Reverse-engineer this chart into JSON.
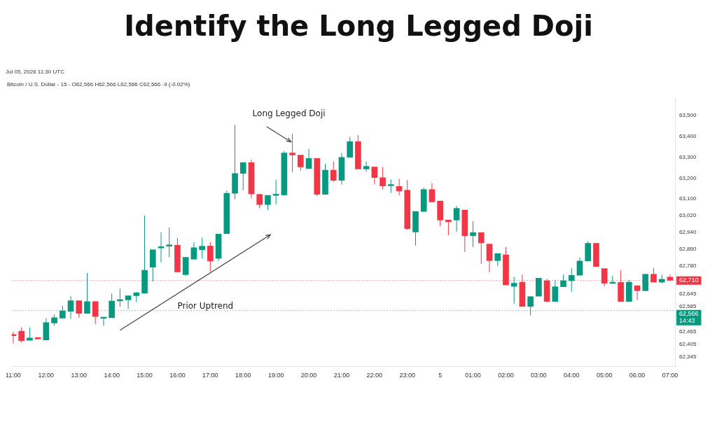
{
  "chart_data": {
    "type": "candlestick",
    "title": "Identify the Long Legged Doji",
    "subtitle": "Bitcoin / U.S. Dollar - 15 - O62,566 H62,566 L62,566 C62,566 -9 (-0.02%)",
    "x": [
      "2026-07-04T11:00",
      "2026-07-04T11:15",
      "2026-07-04T11:30",
      "2026-07-04T11:45",
      "2026-07-04T12:00",
      "2026-07-04T12:15",
      "2026-07-04T12:30",
      "2026-07-04T12:45",
      "2026-07-04T13:00",
      "2026-07-04T13:15",
      "2026-07-04T13:30",
      "2026-07-04T13:45",
      "2026-07-04T14:00",
      "2026-07-04T14:15",
      "2026-07-04T14:30",
      "2026-07-04T14:45",
      "2026-07-04T15:00",
      "2026-07-04T15:15",
      "2026-07-04T15:30",
      "2026-07-04T15:45",
      "2026-07-04T16:00",
      "2026-07-04T16:15",
      "2026-07-04T16:30",
      "2026-07-04T16:45",
      "2026-07-04T17:00",
      "2026-07-04T17:15",
      "2026-07-04T17:30",
      "2026-07-04T17:45",
      "2026-07-04T18:00",
      "2026-07-04T18:15",
      "2026-07-04T18:30",
      "2026-07-04T18:45",
      "2026-07-04T19:00",
      "2026-07-04T19:15",
      "2026-07-04T19:30",
      "2026-07-04T19:45",
      "2026-07-04T20:00",
      "2026-07-04T20:15",
      "2026-07-04T20:30",
      "2026-07-04T20:45",
      "2026-07-04T21:00",
      "2026-07-04T21:15",
      "2026-07-04T21:30",
      "2026-07-04T21:45",
      "2026-07-04T22:00",
      "2026-07-04T22:15",
      "2026-07-04T22:30",
      "2026-07-04T22:45",
      "2026-07-04T23:00",
      "2026-07-04T23:15",
      "2026-07-04T23:30",
      "2026-07-04T23:45",
      "2026-07-05T00:00",
      "2026-07-05T00:15",
      "2026-07-05T00:30",
      "2026-07-05T00:45",
      "2026-07-05T01:00",
      "2026-07-05T01:15",
      "2026-07-05T01:30",
      "2026-07-05T01:45",
      "2026-07-05T02:00",
      "2026-07-05T02:15",
      "2026-07-05T02:30",
      "2026-07-05T02:45",
      "2026-07-05T03:00",
      "2026-07-05T03:15",
      "2026-07-05T03:30",
      "2026-07-05T03:45",
      "2026-07-05T04:00",
      "2026-07-05T04:15",
      "2026-07-05T04:30",
      "2026-07-05T04:45",
      "2026-07-05T05:00",
      "2026-07-05T05:15",
      "2026-07-05T05:30",
      "2026-07-05T05:45",
      "2026-07-05T06:00",
      "2026-07-05T06:15",
      "2026-07-05T06:30",
      "2026-07-05T06:45",
      "2026-07-05T07:00"
    ],
    "ohlc": [
      [
        62452,
        62465,
        62409,
        62446
      ],
      [
        62468,
        62486,
        62414,
        62422
      ],
      [
        62424,
        62486,
        62424,
        62435
      ],
      [
        62437,
        62440,
        62430,
        62431
      ],
      [
        62426,
        62530,
        62426,
        62509
      ],
      [
        62507,
        62548,
        62493,
        62532
      ],
      [
        62530,
        62589,
        62530,
        62565
      ],
      [
        62563,
        62635,
        62527,
        62613
      ],
      [
        62613,
        62613,
        62532,
        62553
      ],
      [
        62553,
        62746,
        62553,
        62609
      ],
      [
        62609,
        62609,
        62502,
        62538
      ],
      [
        62529,
        62535,
        62493,
        62535
      ],
      [
        62532,
        62648,
        62532,
        62612
      ],
      [
        62612,
        62671,
        62584,
        62618
      ],
      [
        62617,
        62637,
        62574,
        62637
      ],
      [
        62637,
        62656,
        62607,
        62651
      ],
      [
        62649,
        63021,
        62649,
        62759
      ],
      [
        62774,
        62857,
        62705,
        62857
      ],
      [
        62866,
        62941,
        62797,
        62872
      ],
      [
        62874,
        62963,
        62821,
        62880
      ],
      [
        62879,
        62913,
        62751,
        62751
      ],
      [
        62738,
        62821,
        62733,
        62821
      ],
      [
        62812,
        62893,
        62812,
        62867
      ],
      [
        62857,
        62915,
        62816,
        62874
      ],
      [
        62875,
        62893,
        62754,
        62803
      ],
      [
        62816,
        62932,
        62803,
        62932
      ],
      [
        62934,
        63140,
        62934,
        63127
      ],
      [
        63127,
        63454,
        63099,
        63222
      ],
      [
        63222,
        63274,
        63140,
        63274
      ],
      [
        63274,
        63289,
        63104,
        63124
      ],
      [
        63122,
        63122,
        63057,
        63073
      ],
      [
        63073,
        63117,
        63047,
        63117
      ],
      [
        63117,
        63191,
        63073,
        63123
      ],
      [
        63119,
        63330,
        63119,
        63320
      ],
      [
        63320,
        63413,
        63227,
        63310
      ],
      [
        63310,
        63310,
        63234,
        63253
      ],
      [
        63246,
        63340,
        63246,
        63294
      ],
      [
        63294,
        63294,
        63114,
        63122
      ],
      [
        63122,
        63268,
        63122,
        63238
      ],
      [
        63238,
        63279,
        63181,
        63189
      ],
      [
        63189,
        63320,
        63169,
        63299
      ],
      [
        63299,
        63397,
        63299,
        63374
      ],
      [
        63374,
        63405,
        63243,
        63243
      ],
      [
        63243,
        63279,
        63230,
        63256
      ],
      [
        63253,
        63253,
        63169,
        63202
      ],
      [
        63202,
        63253,
        63145,
        63162
      ],
      [
        63163,
        63193,
        63129,
        63169
      ],
      [
        63160,
        63196,
        63117,
        63138
      ],
      [
        63142,
        63191,
        62952,
        62958
      ],
      [
        62942,
        63040,
        62877,
        63040
      ],
      [
        63040,
        63155,
        63040,
        63145
      ],
      [
        63145,
        63176,
        63086,
        63086
      ],
      [
        63090,
        63090,
        62970,
        62999
      ],
      [
        62999,
        62999,
        62926,
        62991
      ],
      [
        62999,
        63066,
        62944,
        63055
      ],
      [
        63047,
        63047,
        62846,
        62924
      ],
      [
        62924,
        62994,
        62870,
        62939
      ],
      [
        62939,
        62939,
        62790,
        62890
      ],
      [
        62884,
        62884,
        62749,
        62805
      ],
      [
        62805,
        62839,
        62779,
        62839
      ],
      [
        62833,
        62870,
        62689,
        62689
      ],
      [
        62682,
        62728,
        62599,
        62697
      ],
      [
        62702,
        62738,
        62586,
        62586
      ],
      [
        62586,
        62633,
        62543,
        62633
      ],
      [
        62635,
        62721,
        62635,
        62721
      ],
      [
        62709,
        62718,
        62605,
        62610
      ],
      [
        62610,
        62713,
        62610,
        62680
      ],
      [
        62680,
        62738,
        62680,
        62709
      ],
      [
        62709,
        62769,
        62656,
        62735
      ],
      [
        62735,
        62821,
        62735,
        62803
      ],
      [
        62803,
        62898,
        62803,
        62888
      ],
      [
        62888,
        62888,
        62777,
        62777
      ],
      [
        62767,
        62767,
        62682,
        62697
      ],
      [
        62696,
        62733,
        62696,
        62702
      ],
      [
        62701,
        62759,
        62610,
        62610
      ],
      [
        62610,
        62713,
        62610,
        62702
      ],
      [
        62685,
        62685,
        62617,
        62661
      ],
      [
        62661,
        62740,
        62661,
        62740
      ],
      [
        62740,
        62769,
        62702,
        62702
      ],
      [
        62702,
        62738,
        62697,
        62716
      ],
      [
        62726,
        62738,
        62711,
        62711
      ]
    ],
    "colors": [
      "#f23645",
      "#f23645",
      "#089981",
      "#f23645",
      "#089981",
      "#089981",
      "#089981",
      "#089981",
      "#f23645",
      "#089981",
      "#f23645",
      "#089981",
      "#089981",
      "#089981",
      "#089981",
      "#089981",
      "#089981",
      "#089981",
      "#089981",
      "#089981",
      "#f23645",
      "#089981",
      "#089981",
      "#089981",
      "#f23645",
      "#089981",
      "#089981",
      "#089981",
      "#089981",
      "#f23645",
      "#f23645",
      "#089981",
      "#089981",
      "#089981",
      "#f23645",
      "#f23645",
      "#089981",
      "#f23645",
      "#089981",
      "#f23645",
      "#089981",
      "#089981",
      "#f23645",
      "#089981",
      "#f23645",
      "#f23645",
      "#089981",
      "#f23645",
      "#f23645",
      "#089981",
      "#089981",
      "#f23645",
      "#f23645",
      "#f23645",
      "#089981",
      "#f23645",
      "#089981",
      "#f23645",
      "#f23645",
      "#089981",
      "#f23645",
      "#089981",
      "#f23645",
      "#089981",
      "#089981",
      "#f23645",
      "#089981",
      "#089981",
      "#089981",
      "#089981",
      "#089981",
      "#f23645",
      "#f23645",
      "#089981",
      "#f23645",
      "#089981",
      "#f23645",
      "#089981",
      "#f23645",
      "#089981",
      "#f23645"
    ],
    "xlim": [
      "2026-07-04T10:57",
      "2026-07-05T07:09"
    ],
    "xticks": [
      {
        "value": "2026-07-04T11:00",
        "label": "11:00"
      },
      {
        "value": "2026-07-04T12:00",
        "label": "12:00"
      },
      {
        "value": "2026-07-04T13:00",
        "label": "13:00"
      },
      {
        "value": "2026-07-04T14:00",
        "label": "14:00"
      },
      {
        "value": "2026-07-04T15:00",
        "label": "15:00"
      },
      {
        "value": "2026-07-04T16:00",
        "label": "16:00"
      },
      {
        "value": "2026-07-04T17:00",
        "label": "17:00"
      },
      {
        "value": "2026-07-04T18:00",
        "label": "18:00"
      },
      {
        "value": "2026-07-04T19:00",
        "label": "19:00"
      },
      {
        "value": "2026-07-04T20:00",
        "label": "20:00"
      },
      {
        "value": "2026-07-04T21:00",
        "label": "21:00"
      },
      {
        "value": "2026-07-04T22:00",
        "label": "22:00"
      },
      {
        "value": "2026-07-04T23:00",
        "label": "23:00"
      },
      {
        "value": "2026-07-05T00:00",
        "label": "5"
      },
      {
        "value": "2026-07-05T01:00",
        "label": "01:00"
      },
      {
        "value": "2026-07-05T02:00",
        "label": "02:00"
      },
      {
        "value": "2026-07-05T03:00",
        "label": "03:00"
      },
      {
        "value": "2026-07-05T04:00",
        "label": "04:00"
      },
      {
        "value": "2026-07-05T05:00",
        "label": "05:00"
      },
      {
        "value": "2026-07-05T06:00",
        "label": "06:00"
      },
      {
        "value": "2026-07-05T07:00",
        "label": "07:00"
      }
    ],
    "ylim": [
      62300,
      63580
    ],
    "yticks": [
      {
        "value": 62345,
        "label": "62,345"
      },
      {
        "value": 62405,
        "label": "62,405"
      },
      {
        "value": 62465,
        "label": "62,465"
      },
      {
        "value": 62585,
        "label": "62,585"
      },
      {
        "value": 62645,
        "label": "62,645"
      },
      {
        "value": 62780,
        "label": "62,780"
      },
      {
        "value": 62860,
        "label": "62,860"
      },
      {
        "value": 62940,
        "label": "62,940"
      },
      {
        "value": 63020,
        "label": "63,020"
      },
      {
        "value": 63100,
        "label": "63,100"
      },
      {
        "value": 63200,
        "label": "63,200"
      },
      {
        "value": 63300,
        "label": "63,300"
      },
      {
        "value": 63400,
        "label": "63,400"
      },
      {
        "value": 63500,
        "label": "63,500"
      }
    ],
    "ref_lines": [
      {
        "axis": "y",
        "value": 62566,
        "label": "62,566",
        "color": "#089981",
        "line_style": "dotted"
      },
      {
        "axis": "y",
        "value": 62710,
        "label": "62,710",
        "color": "#f23645",
        "line_style": "dotted"
      }
    ],
    "annotations": [
      {
        "text": "Long Legged Doji",
        "x": "2026-07-04T19:30",
        "y": 63413
      },
      "Prior Uptrend",
      "14:43",
      "Jul 05, 2026 11:30 UTC"
    ],
    "grid": false,
    "legend": false
  }
}
